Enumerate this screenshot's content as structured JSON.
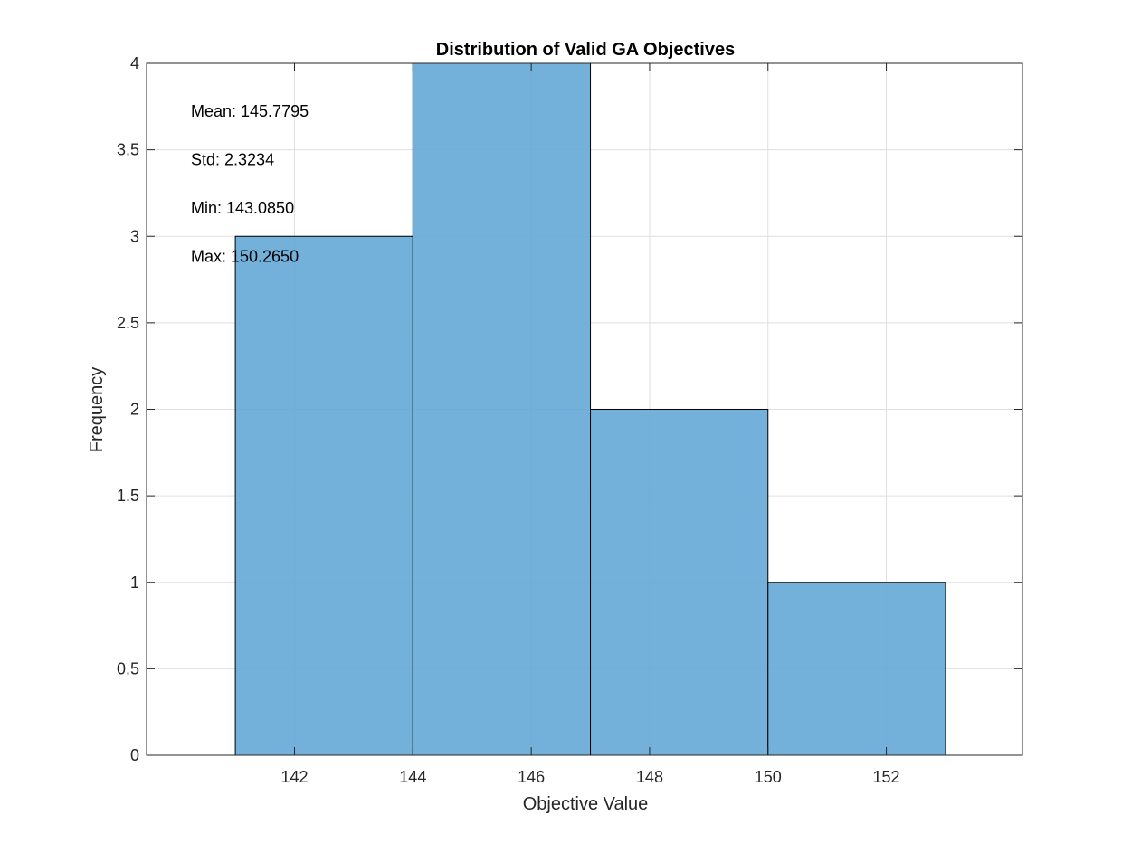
{
  "chart_data": {
    "type": "bar",
    "subtype": "histogram",
    "title": "Distribution of Valid GA Objectives",
    "xlabel": "Objective Value",
    "ylabel": "Frequency",
    "bin_edges": [
      141,
      144,
      147,
      150,
      153
    ],
    "values": [
      3,
      4,
      2,
      1
    ],
    "xlim": [
      139.5,
      154.3
    ],
    "ylim": [
      0,
      4
    ],
    "xticks": [
      142,
      144,
      146,
      148,
      150,
      152
    ],
    "xtick_labels": [
      "142",
      "144",
      "146",
      "148",
      "150",
      "152"
    ],
    "yticks": [
      0,
      0.5,
      1,
      1.5,
      2,
      2.5,
      3,
      3.5,
      4
    ],
    "ytick_labels": [
      "0",
      "0.5",
      "1",
      "1.5",
      "2",
      "2.5",
      "3",
      "3.5",
      "4"
    ],
    "grid": true,
    "bar_color": "#65a8d6",
    "annotations": [
      "Mean: 145.7795",
      "Std: 2.3234",
      "Min: 143.0850",
      "Max: 150.2650"
    ]
  }
}
